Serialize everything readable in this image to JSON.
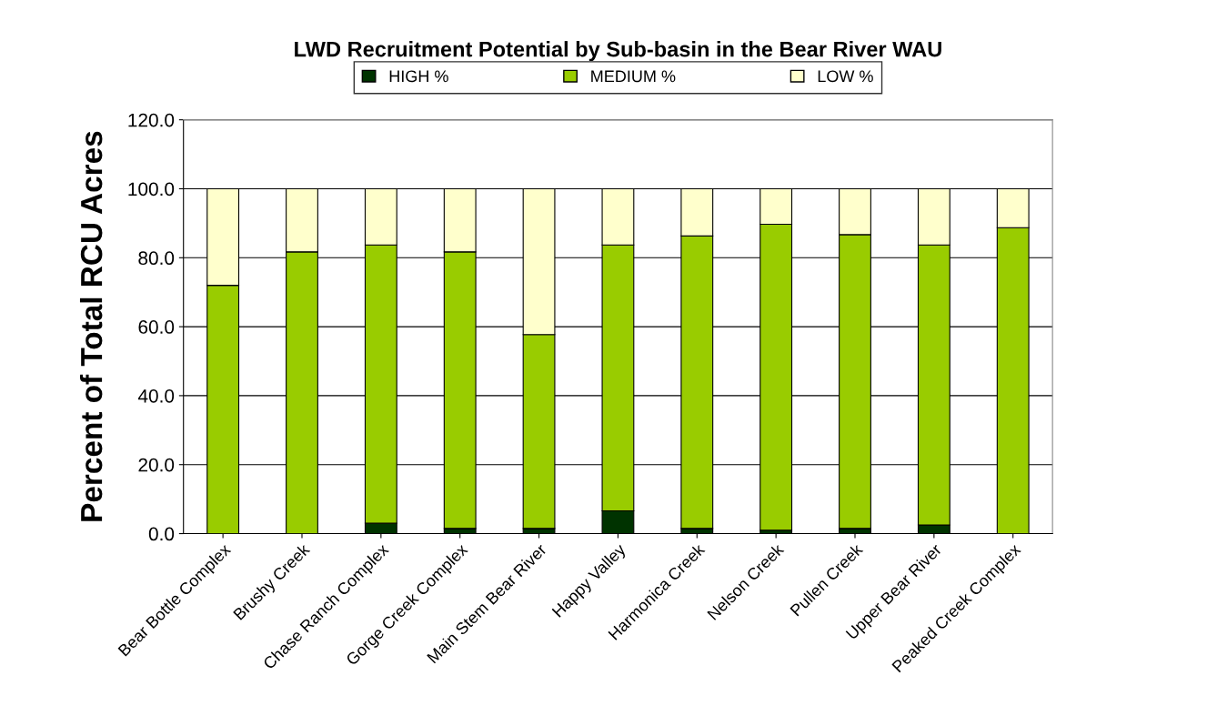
{
  "chart_data": {
    "type": "bar",
    "stacked": true,
    "title": "LWD Recruitment Potential by Sub-basin in the Bear River WAU",
    "ylabel": "Percent of Total RCU Acres",
    "categories": [
      "Bear Bottle Complex",
      "Brushy Creek",
      "Chase Ranch Complex",
      "Gorge Creek Complex",
      "Main Stem Bear River",
      "Happy Valley",
      "Harmonica Creek",
      "Nelson Creek",
      "Pullen Creek",
      "Upper Bear River",
      "Peaked Creek Complex"
    ],
    "series": [
      {
        "name": "HIGH %",
        "color": "#003300",
        "values": [
          0,
          0,
          3.0,
          1.5,
          1.5,
          6.6,
          1.5,
          1.0,
          1.5,
          2.5,
          0
        ]
      },
      {
        "name": "MEDIUM %",
        "color": "#99cc00",
        "values": [
          72.0,
          81.7,
          80.7,
          80.2,
          56.2,
          77.1,
          84.8,
          88.7,
          85.2,
          81.2,
          88.7
        ]
      },
      {
        "name": "LOW %",
        "color": "#ffffcc",
        "values": [
          28.0,
          18.3,
          16.3,
          18.3,
          42.3,
          16.3,
          13.7,
          10.3,
          13.3,
          16.3,
          11.3
        ]
      }
    ],
    "ylim": [
      0,
      120
    ],
    "yticks": [
      {
        "value": 0,
        "label": "0.0"
      },
      {
        "value": 20,
        "label": "20.0"
      },
      {
        "value": 40,
        "label": "40.0"
      },
      {
        "value": 60,
        "label": "60.0"
      },
      {
        "value": 80,
        "label": "80.0"
      },
      {
        "value": 100,
        "label": "100.0"
      },
      {
        "value": 120,
        "label": "120.0"
      }
    ],
    "grid": "y",
    "legend": "top"
  }
}
